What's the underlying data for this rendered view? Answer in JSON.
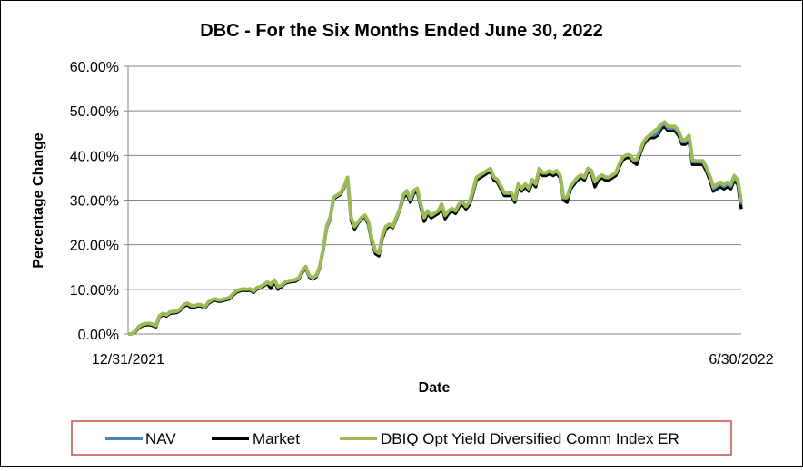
{
  "chart_data": {
    "type": "line",
    "title": "DBC - For the Six Months Ended June 30, 2022",
    "xlabel": "Date",
    "ylabel": "Percentage Change",
    "x_tick_labels": [
      "12/31/2021",
      "6/30/2022"
    ],
    "y_tick_labels": [
      "0.00%",
      "10.00%",
      "20.00%",
      "30.00%",
      "40.00%",
      "50.00%",
      "60.00%"
    ],
    "ylim": [
      0,
      60
    ],
    "y_ticks": [
      0,
      10,
      20,
      30,
      40,
      50,
      60
    ],
    "grid": "horizontal",
    "legend_position": "bottom",
    "colors": {
      "NAV": "#4f81bd",
      "Market": "#000000",
      "Index": "#9bbb59"
    },
    "series": [
      {
        "name": "NAV",
        "values": [
          0,
          0,
          0.5,
          1.5,
          2,
          2.2,
          2.3,
          2.1,
          1.8,
          4,
          4.5,
          4.2,
          4.8,
          4.9,
          5,
          5.5,
          6.5,
          6.8,
          6.3,
          6.2,
          6.5,
          6.4,
          6.0,
          7.0,
          7.5,
          7.8,
          7.5,
          7.6,
          7.8,
          8.0,
          8.8,
          9.5,
          9.8,
          10.0,
          9.9,
          10.0,
          9.5,
          10.3,
          10.5,
          11,
          11.5,
          11,
          12,
          10.5,
          10.8,
          11.5,
          11.8,
          11.9,
          12.0,
          12.5,
          14,
          15,
          13,
          12.5,
          13,
          15,
          19,
          24,
          26,
          30.5,
          31,
          31.5,
          33,
          35,
          26,
          24,
          25,
          26,
          26.5,
          25,
          21,
          18.5,
          18,
          22,
          24,
          24.5,
          24,
          26,
          28,
          31,
          32,
          30,
          32,
          32.5,
          29,
          26,
          27.5,
          26.5,
          27,
          27.5,
          29,
          26.5,
          27.5,
          28,
          27.5,
          29,
          29.5,
          28.5,
          29.5,
          32,
          35,
          35.5,
          36,
          36.5,
          37,
          35,
          34.5,
          33,
          31.5,
          31.5,
          31.5,
          30,
          33.5,
          32.5,
          33.5,
          32.5,
          34.5,
          33.5,
          37,
          36,
          36,
          36.5,
          36,
          36.5,
          35.5,
          30.5,
          30.5,
          33,
          34,
          35,
          35.5,
          35,
          37,
          36.5,
          34,
          35,
          35.5,
          35,
          35,
          35.5,
          36,
          38,
          39.5,
          40,
          40,
          39,
          39,
          41,
          43,
          44,
          44.5,
          44.5,
          45,
          46.5,
          47,
          46,
          46,
          46,
          45,
          43,
          43,
          44,
          38.5,
          38.5,
          38.5,
          38.5,
          37,
          35,
          32.5,
          33,
          33.5,
          33,
          33.5,
          33,
          35,
          34,
          29
        ]
      },
      {
        "name": "Market",
        "values": [
          0,
          0,
          0.4,
          1.3,
          1.8,
          2.0,
          2.1,
          1.9,
          1.6,
          3.8,
          4.3,
          4.0,
          4.6,
          4.7,
          4.8,
          5.3,
          6.2,
          6.5,
          6.0,
          6.0,
          6.3,
          6.2,
          5.8,
          6.8,
          7.3,
          7.6,
          7.3,
          7.4,
          7.6,
          7.8,
          8.6,
          9.3,
          9.6,
          9.8,
          9.7,
          9.8,
          9.3,
          10.1,
          10.3,
          10.8,
          11.3,
          10.2,
          11.8,
          10.0,
          10.6,
          11.3,
          11.6,
          11.7,
          11.8,
          12.3,
          13.8,
          14.8,
          12.8,
          12.3,
          12.8,
          14.8,
          18.8,
          23.8,
          25.8,
          30.3,
          30.8,
          31.3,
          32.8,
          34.8,
          25.5,
          23.5,
          24.8,
          25.8,
          26.3,
          24.5,
          20.5,
          18.0,
          17.5,
          21.5,
          23.5,
          24.3,
          23.8,
          25.8,
          27.8,
          30.5,
          31.5,
          29.5,
          31.5,
          32.0,
          28.5,
          25.2,
          27.0,
          26.0,
          26.5,
          27.0,
          28.5,
          25.8,
          27.0,
          27.5,
          27.0,
          28.5,
          29.0,
          28.0,
          29.0,
          31.5,
          34.5,
          35.0,
          35.5,
          36.0,
          36.5,
          34.5,
          34.0,
          32.5,
          31.0,
          31.0,
          31.0,
          29.5,
          33.0,
          32.0,
          33.0,
          32.0,
          34.0,
          33.0,
          36.5,
          35.5,
          35.5,
          36.0,
          35.5,
          36.0,
          35.0,
          30.0,
          29.5,
          32.5,
          33.5,
          34.5,
          35.0,
          34.5,
          36.5,
          36.0,
          33.0,
          34.5,
          35.0,
          34.5,
          34.5,
          35.0,
          35.5,
          37.5,
          39.0,
          39.5,
          39.5,
          38.5,
          38.0,
          40.5,
          42.5,
          43.5,
          44.0,
          44.0,
          44.5,
          46.0,
          46.5,
          45.5,
          45.5,
          45.5,
          44.5,
          42.5,
          42.5,
          43.5,
          38.0,
          38.0,
          38.0,
          38.0,
          36.5,
          34.5,
          32.0,
          32.5,
          33.0,
          32.5,
          33.0,
          32.5,
          34.5,
          33.5,
          28
        ]
      },
      {
        "name": "DBIQ Opt Yield Diversified Comm Index ER",
        "values": [
          0,
          0,
          0.6,
          1.6,
          2.1,
          2.3,
          2.4,
          2.2,
          1.9,
          4.1,
          4.6,
          4.3,
          4.9,
          5.0,
          5.1,
          5.6,
          6.6,
          6.9,
          6.4,
          6.3,
          6.6,
          6.5,
          6.1,
          7.1,
          7.6,
          7.9,
          7.6,
          7.7,
          7.9,
          8.1,
          8.9,
          9.6,
          9.9,
          10.1,
          10.0,
          10.1,
          9.6,
          10.4,
          10.6,
          11.1,
          11.6,
          11.1,
          12.1,
          10.6,
          10.9,
          11.6,
          11.9,
          12.0,
          12.1,
          12.6,
          14.1,
          15.1,
          13.1,
          12.6,
          13.1,
          15.1,
          19.1,
          24.1,
          26.1,
          30.6,
          31.1,
          31.6,
          33.1,
          35.1,
          26.1,
          24.1,
          25.1,
          26.1,
          26.6,
          25.1,
          21.1,
          18.6,
          18.1,
          22.1,
          24.1,
          24.6,
          24.1,
          26.1,
          28.1,
          31.1,
          32.1,
          30.1,
          32.1,
          32.6,
          29.1,
          26.1,
          27.6,
          26.6,
          27.1,
          27.6,
          29.1,
          26.6,
          27.6,
          28.1,
          27.6,
          29.1,
          29.6,
          28.6,
          29.6,
          32.1,
          35.1,
          35.6,
          36.1,
          36.6,
          37.1,
          35.1,
          34.6,
          33.1,
          31.6,
          31.6,
          31.6,
          30.1,
          33.6,
          32.6,
          33.6,
          32.6,
          34.6,
          33.6,
          37.1,
          36.1,
          36.1,
          36.6,
          36.1,
          36.6,
          35.6,
          30.6,
          30.6,
          33.1,
          34.1,
          35.1,
          35.6,
          35.1,
          37.1,
          36.6,
          34.1,
          35.1,
          35.6,
          35.1,
          35.1,
          35.6,
          36.1,
          38.1,
          39.6,
          40.1,
          40.1,
          39.1,
          39.1,
          41.1,
          43.1,
          44.1,
          44.6,
          45.5,
          46.0,
          47.0,
          47.5,
          46.5,
          46.5,
          46.5,
          45.5,
          43.5,
          43.5,
          44.5,
          39.0,
          38.8,
          38.8,
          38.8,
          37.3,
          35.3,
          33.0,
          33.5,
          34.0,
          33.5,
          34.0,
          33.5,
          35.5,
          34.5,
          29.5
        ]
      }
    ]
  }
}
